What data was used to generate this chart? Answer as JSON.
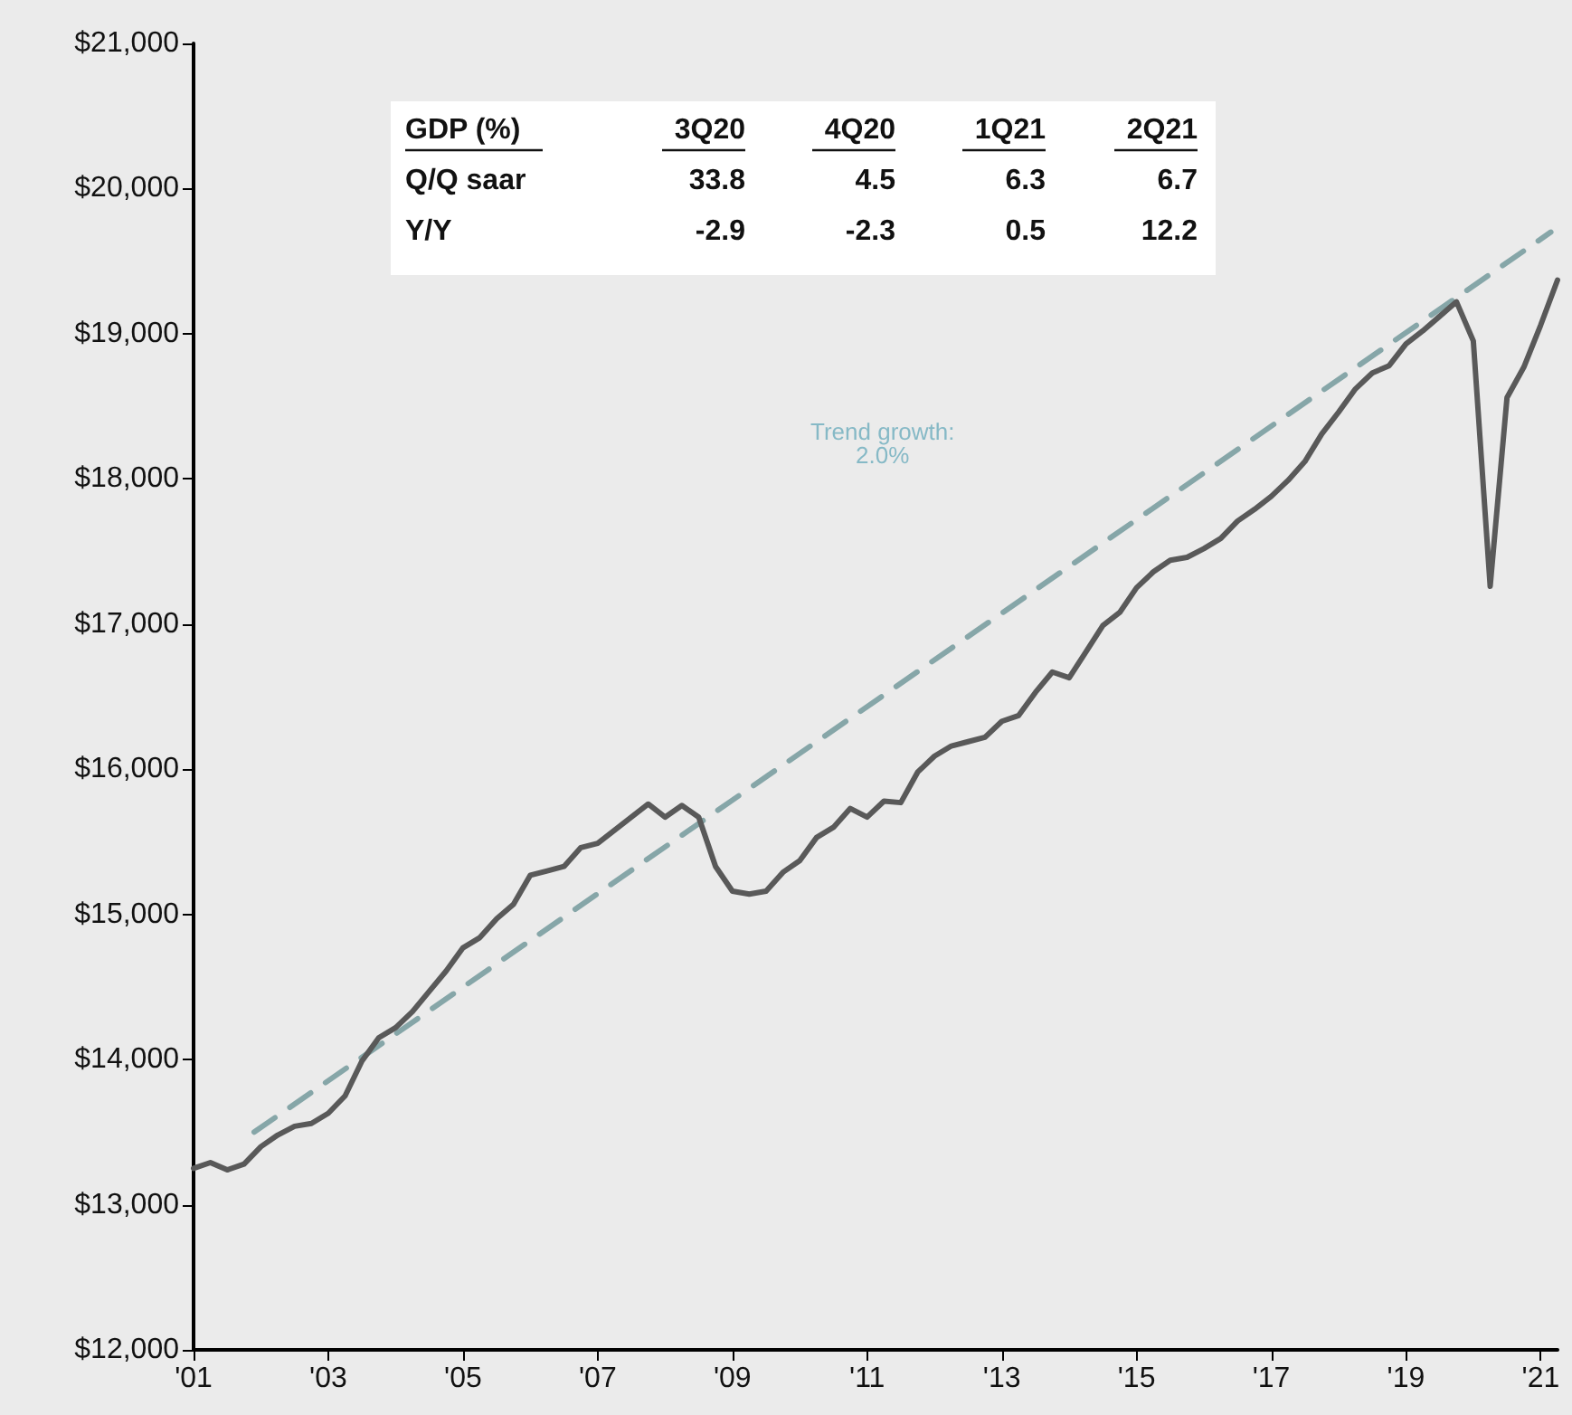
{
  "chart_data": {
    "type": "line",
    "x": [
      2001,
      2001.25,
      2001.5,
      2001.75,
      2002,
      2002.25,
      2002.5,
      2002.75,
      2003,
      2003.25,
      2003.5,
      2003.75,
      2004,
      2004.25,
      2004.5,
      2004.75,
      2005,
      2005.25,
      2005.5,
      2005.75,
      2006,
      2006.25,
      2006.5,
      2006.75,
      2007,
      2007.25,
      2007.5,
      2007.75,
      2008,
      2008.25,
      2008.5,
      2008.75,
      2009,
      2009.25,
      2009.5,
      2009.75,
      2010,
      2010.25,
      2010.5,
      2010.75,
      2011,
      2011.25,
      2011.5,
      2011.75,
      2012,
      2012.25,
      2012.5,
      2012.75,
      2013,
      2013.25,
      2013.5,
      2013.75,
      2014,
      2014.25,
      2014.5,
      2014.75,
      2015,
      2015.25,
      2015.5,
      2015.75,
      2016,
      2016.25,
      2016.5,
      2016.75,
      2017,
      2017.25,
      2017.5,
      2017.75,
      2018,
      2018.25,
      2018.5,
      2018.75,
      2019,
      2019.25,
      2019.5,
      2019.75,
      2020,
      2020.25,
      2020.5,
      2020.75,
      2021,
      2021.25
    ],
    "series": [
      {
        "color": "#595959",
        "line_style": "solid",
        "values": [
          13250,
          13290,
          13240,
          13280,
          13400,
          13480,
          13540,
          13560,
          13630,
          13750,
          13990,
          14150,
          14220,
          14330,
          14470,
          14610,
          14770,
          14840,
          14970,
          15070,
          15270,
          15300,
          15330,
          15460,
          15490,
          15580,
          15670,
          15760,
          15670,
          15750,
          15670,
          15330,
          15160,
          15140,
          15160,
          15290,
          15370,
          15530,
          15600,
          15730,
          15670,
          15780,
          15770,
          15980,
          16090,
          16160,
          16190,
          16220,
          16330,
          16370,
          16530,
          16670,
          16630,
          16810,
          16990,
          17080,
          17250,
          17360,
          17440,
          17460,
          17520,
          17590,
          17710,
          17790,
          17880,
          17990,
          18120,
          18310,
          18460,
          18620,
          18730,
          18780,
          18930,
          19020,
          19120,
          19220,
          18950,
          17260,
          18560,
          18770,
          19060,
          19370
        ]
      },
      {
        "type": "line",
        "color": "#86a6a8",
        "line_style": "dashed",
        "x": [
          2001.9,
          2021.15
        ],
        "values": [
          13500,
          19700
        ]
      }
    ],
    "xlim": [
      2001,
      2021.25
    ],
    "xticks": [
      {
        "value": 2001,
        "label": "'01"
      },
      {
        "value": 2003,
        "label": "'03"
      },
      {
        "value": 2005,
        "label": "'05"
      },
      {
        "value": 2007,
        "label": "'07"
      },
      {
        "value": 2009,
        "label": "'09"
      },
      {
        "value": 2011,
        "label": "'11"
      },
      {
        "value": 2013,
        "label": "'13"
      },
      {
        "value": 2015,
        "label": "'15"
      },
      {
        "value": 2017,
        "label": "'17"
      },
      {
        "value": 2019,
        "label": "'19"
      },
      {
        "value": 2021,
        "label": "'21"
      }
    ],
    "ylim": [
      12000,
      21000
    ],
    "yticks": [
      {
        "value": 12000,
        "label": "$12,000"
      },
      {
        "value": 13000,
        "label": "$13,000"
      },
      {
        "value": 14000,
        "label": "$14,000"
      },
      {
        "value": 15000,
        "label": "$15,000"
      },
      {
        "value": 16000,
        "label": "$16,000"
      },
      {
        "value": 17000,
        "label": "$17,000"
      },
      {
        "value": 18000,
        "label": "$18,000"
      },
      {
        "value": 19000,
        "label": "$19,000"
      },
      {
        "value": 20000,
        "label": "$20,000"
      },
      {
        "value": 21000,
        "label": "$21,000"
      }
    ],
    "grid": false,
    "marker": "none",
    "annotations": [
      "Trend growth:\n2.0%",
      "GDP (%)",
      "3Q20",
      "4Q20",
      "1Q21",
      "2Q21",
      "Q/Q saar",
      "33.8",
      "4.5",
      "6.3",
      "6.7",
      "Y/Y",
      "-2.9",
      "-2.3",
      "0.5",
      "12.2"
    ]
  }
}
